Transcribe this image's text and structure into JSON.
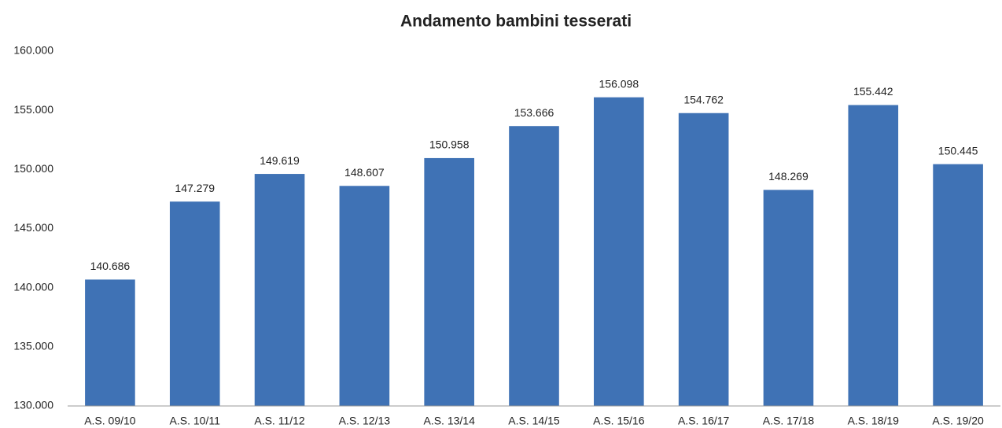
{
  "chart_data": {
    "type": "bar",
    "title": "Andamento bambini tesserati",
    "categories": [
      "A.S. 09/10",
      "A.S. 10/11",
      "A.S. 11/12",
      "A.S. 12/13",
      "A.S. 13/14",
      "A.S. 14/15",
      "A.S. 15/16",
      "A.S. 16/17",
      "A.S. 17/18",
      "A.S. 18/19",
      "A.S. 19/20"
    ],
    "values": [
      140686,
      147279,
      149619,
      148607,
      150958,
      153666,
      156098,
      154762,
      148269,
      155442,
      150445
    ],
    "value_labels": [
      "140.686",
      "147.279",
      "149.619",
      "148.607",
      "150.958",
      "153.666",
      "156.098",
      "154.762",
      "148.269",
      "155.442",
      "150.445"
    ],
    "color": "#3f72b5",
    "ylim": [
      130000,
      160000
    ],
    "yticks": [
      {
        "value": 130000,
        "label": "130.000"
      },
      {
        "value": 135000,
        "label": "135.000"
      },
      {
        "value": 140000,
        "label": "140.000"
      },
      {
        "value": 145000,
        "label": "145.000"
      },
      {
        "value": 150000,
        "label": "150.000"
      },
      {
        "value": 155000,
        "label": "155.000"
      },
      {
        "value": 160000,
        "label": "160.000"
      }
    ],
    "grid": false
  }
}
